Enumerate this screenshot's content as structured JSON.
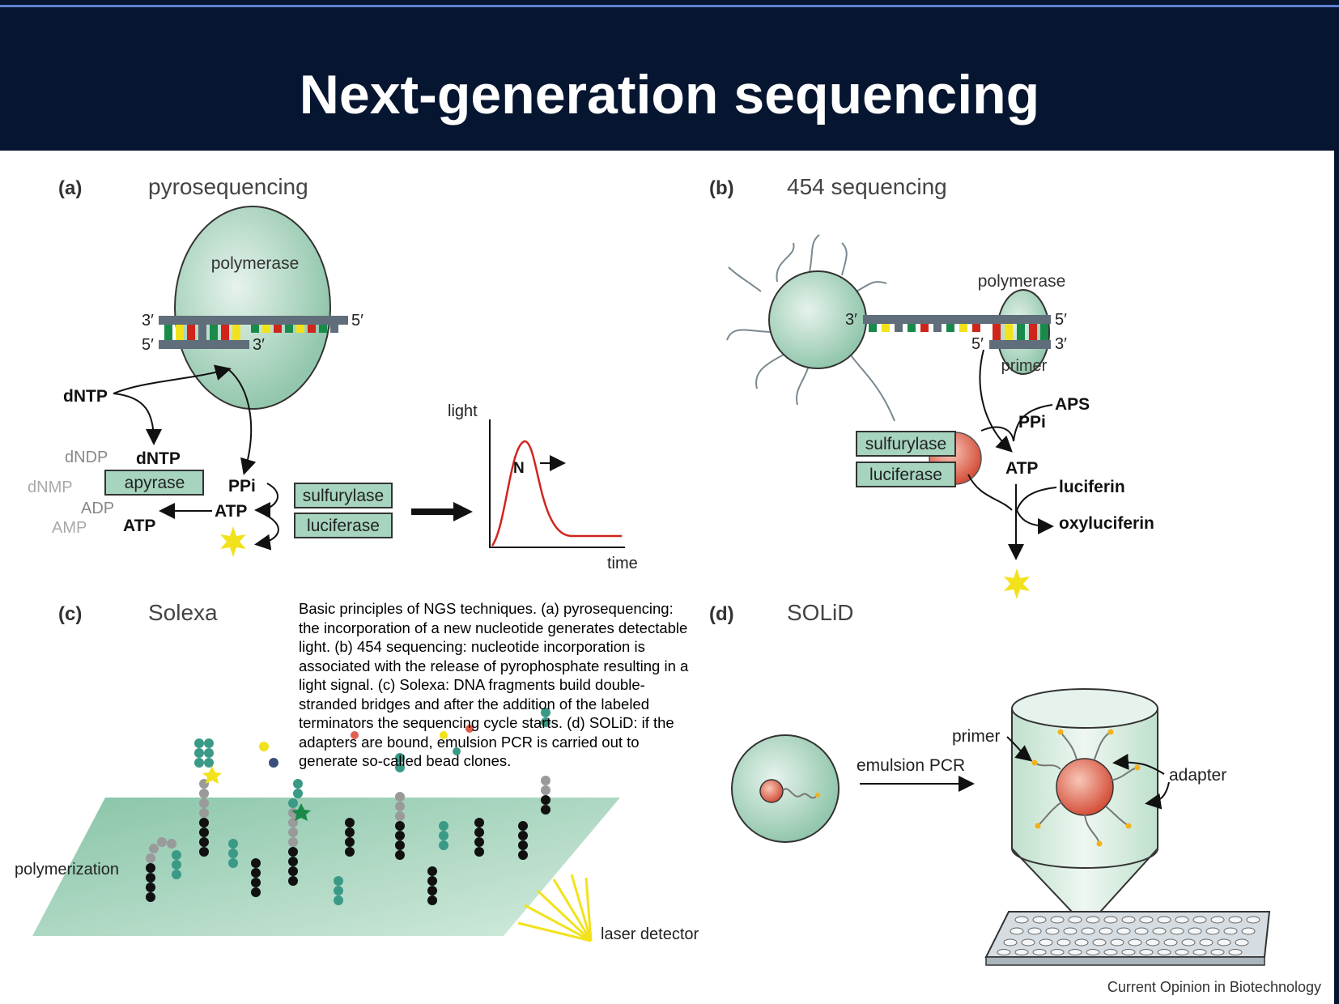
{
  "slide": {
    "title": "Next-generation sequencing",
    "caption": "Basic principles of NGS techniques. (a) pyrosequencing: the incorporation of a new nucleotide generates detectable light. (b) 454 sequencing: nucleotide incorporation is associated with the release of pyrophosphate resulting in a light signal. (c) Solexa: DNA fragments build double-stranded bridges and after the addition of the labeled terminators the sequencing cycle starts. (d) SOLiD: if the adapters are bound, emulsion PCR is carried out to generate so-called bead clones.",
    "credit": "Current Opinion in Biotechnology"
  },
  "panel_a": {
    "tag": "(a)",
    "name": "pyrosequencing",
    "polymerase": "polymerase",
    "three_prime": "3′",
    "five_prime": "5′",
    "dntp": "dNTP",
    "dntp2": "dNTP",
    "dndp": "dNDP",
    "dnmp": "dNMP",
    "apyrase": "apyrase",
    "adp": "ADP",
    "amp": "AMP",
    "atp": "ATP",
    "atp2": "ATP",
    "ppi": "PPi",
    "sulfurylase": "sulfurylase",
    "luciferase": "luciferase",
    "light": "light",
    "time": "time",
    "n": "N"
  },
  "panel_b": {
    "tag": "(b)",
    "name": "454 sequencing",
    "polymerase": "polymerase",
    "primer": "primer",
    "three_prime": "3′",
    "five_prime": "5′",
    "aps": "APS",
    "ppi": "PPi",
    "atp": "ATP",
    "luciferin": "luciferin",
    "oxyluciferin": "oxyluciferin",
    "sulfurylase": "sulfurylase",
    "luciferase": "luciferase"
  },
  "panel_c": {
    "tag": "(c)",
    "name": "Solexa",
    "polymerization": "polymerization",
    "laser": "laser detector"
  },
  "panel_d": {
    "tag": "(d)",
    "name": "SOLiD",
    "emulsion": "emulsion PCR",
    "primer": "primer",
    "adapter": "adapter"
  },
  "colors": {
    "header_bg": "#061530",
    "green": "#a6d4bf",
    "strand": "#5f6e7a",
    "red": "#d0251b",
    "yellow": "#f2e21c",
    "teal": "#3a9a86",
    "bead_red": "#e0604e"
  }
}
